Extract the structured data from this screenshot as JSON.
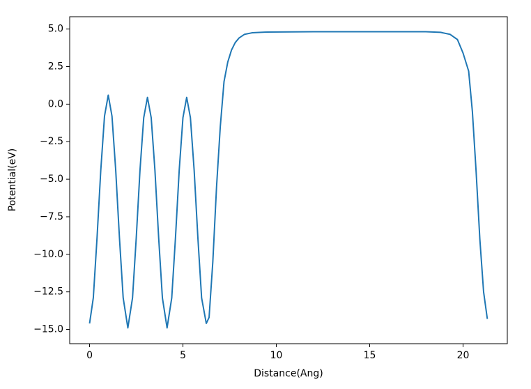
{
  "chart_data": {
    "type": "line",
    "x_label": "Distance(Ang)",
    "y_label": "Potential(eV)",
    "xlim": [
      -1.065,
      22.37
    ],
    "ylim": [
      -15.95,
      5.82
    ],
    "xticks": [
      0,
      5,
      10,
      15,
      20
    ],
    "yticks": [
      {
        "value": 5,
        "label": "5.0"
      },
      {
        "value": 2.5,
        "label": "2.5"
      },
      {
        "value": 0,
        "label": "0.0"
      },
      {
        "value": -2.5,
        "label": "−2.5"
      },
      {
        "value": -5,
        "label": "−5.0"
      },
      {
        "value": -7.5,
        "label": "−7.5"
      },
      {
        "value": -10,
        "label": "−10.0"
      },
      {
        "value": -12.5,
        "label": "−12.5"
      },
      {
        "value": -15,
        "label": "−15.0"
      }
    ],
    "grid": false,
    "series": [
      {
        "color": "#1f77b4",
        "x": [
          0.0,
          0.2,
          0.4,
          0.6,
          0.8,
          1.0,
          1.2,
          1.4,
          1.6,
          1.8,
          2.05,
          2.3,
          2.5,
          2.7,
          2.9,
          3.1,
          3.3,
          3.5,
          3.7,
          3.9,
          4.15,
          4.4,
          4.6,
          4.8,
          5.0,
          5.2,
          5.4,
          5.6,
          5.8,
          6.0,
          6.25,
          6.4,
          6.6,
          6.8,
          7.0,
          7.2,
          7.4,
          7.6,
          7.8,
          8.0,
          8.3,
          8.7,
          9.5,
          12,
          15,
          18,
          18.8,
          19.3,
          19.7,
          20.0,
          20.3,
          20.5,
          20.7,
          20.9,
          21.1,
          21.3
        ],
        "values": [
          -14.6,
          -12.9,
          -8.9,
          -4.4,
          -0.8,
          0.6,
          -0.8,
          -4.4,
          -8.9,
          -12.9,
          -14.9,
          -12.9,
          -8.9,
          -4.4,
          -0.9,
          0.45,
          -0.9,
          -4.4,
          -8.9,
          -12.9,
          -14.9,
          -12.9,
          -8.9,
          -4.4,
          -0.9,
          0.45,
          -0.9,
          -4.4,
          -8.9,
          -12.9,
          -14.6,
          -14.2,
          -10.5,
          -5.5,
          -1.5,
          1.5,
          2.8,
          3.6,
          4.1,
          4.4,
          4.65,
          4.75,
          4.8,
          4.82,
          4.82,
          4.82,
          4.78,
          4.65,
          4.3,
          3.4,
          2.2,
          -0.5,
          -4.5,
          -9,
          -12.5,
          -14.3
        ]
      }
    ]
  }
}
